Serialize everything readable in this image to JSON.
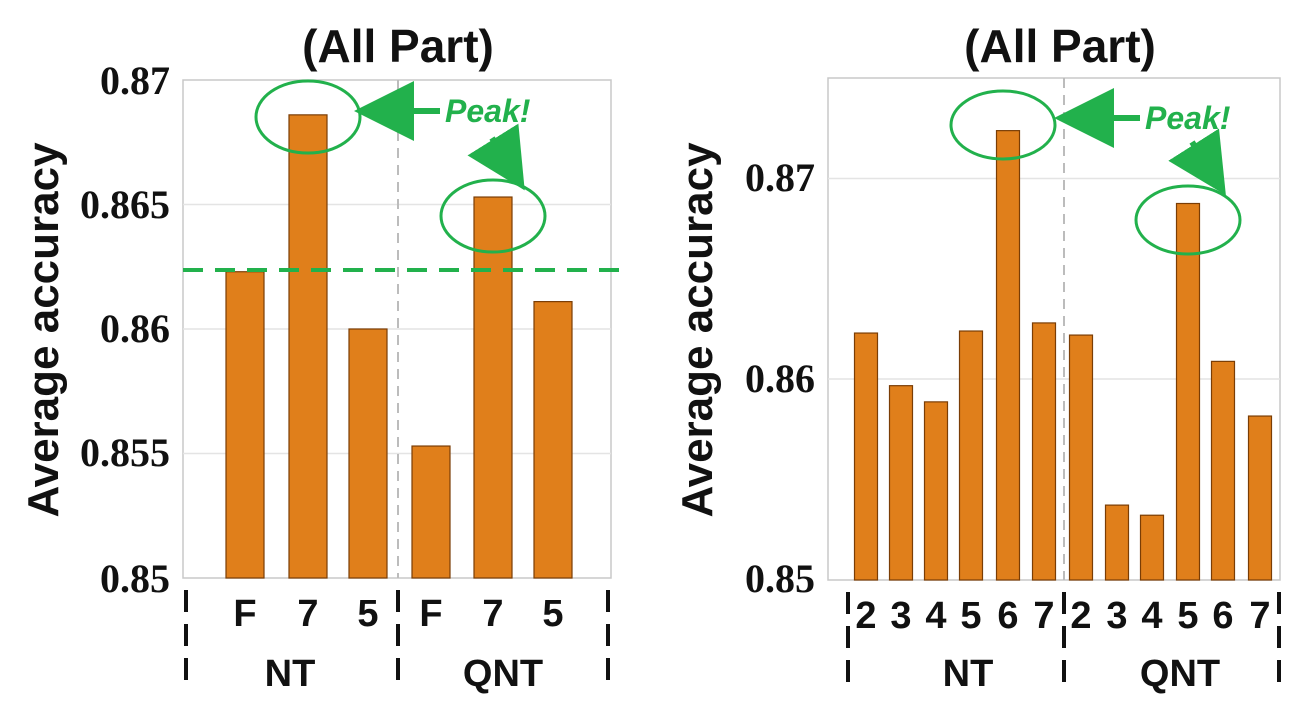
{
  "chart_data": [
    {
      "type": "bar",
      "title": "(All Part)",
      "ylabel": "Average accuracy",
      "ylim": [
        0.85,
        0.87
      ],
      "yticks": [
        "0.85",
        "0.855",
        "0.86",
        "0.865",
        "0.87"
      ],
      "groups": [
        "NT",
        "QNT"
      ],
      "categories": [
        "F",
        "7",
        "5",
        "F",
        "7",
        "5"
      ],
      "values": [
        0.8623,
        0.8686,
        0.86,
        0.8553,
        0.8653,
        0.8611
      ],
      "reference_line": 0.8623,
      "annotation": "Peak!",
      "highlighted": [
        1,
        4
      ],
      "bar_color": "#e07f1b",
      "accent_color": "#22b14c"
    },
    {
      "type": "bar",
      "title": "(All Part)",
      "ylabel": "Average accuracy",
      "ylim": [
        0.85,
        0.8748
      ],
      "yticks": [
        "0.85",
        "0.86",
        "0.87"
      ],
      "groups": [
        "NT",
        "QNT"
      ],
      "categories": [
        "2",
        "3",
        "4",
        "5",
        "6",
        "7",
        "2",
        "3",
        "4",
        "5",
        "6",
        "7"
      ],
      "values": [
        0.8622,
        0.8596,
        0.8588,
        0.8623,
        0.8722,
        0.8627,
        0.8621,
        0.8537,
        0.8532,
        0.8686,
        0.8608,
        0.8581
      ],
      "annotation": "Peak!",
      "highlighted": [
        4,
        9
      ],
      "bar_color": "#e07f1b",
      "accent_color": "#22b14c"
    }
  ]
}
